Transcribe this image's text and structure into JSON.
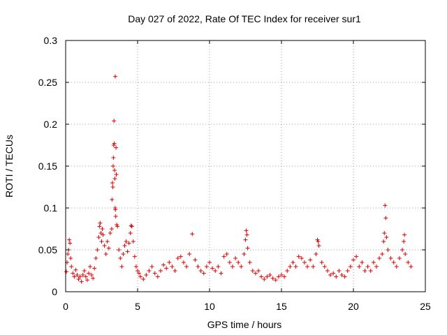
{
  "chart_data": {
    "type": "scatter",
    "title": "Day 027 of 2022, Rate Of TEC Index for receiver sur1",
    "xlabel": "GPS time / hours",
    "ylabel": "ROTI / TECUs",
    "xlim": [
      0,
      25
    ],
    "ylim": [
      0,
      0.3
    ],
    "x_ticks": [
      0,
      5,
      10,
      15,
      20,
      25
    ],
    "x_tick_labels": [
      "0",
      "5",
      "10",
      "15",
      "20",
      "25"
    ],
    "y_ticks": [
      0,
      0.05,
      0.1,
      0.15,
      0.2,
      0.25,
      0.3
    ],
    "y_tick_labels": [
      "0",
      "0.05",
      "0.1",
      "0.15",
      "0.2",
      "0.25",
      "0.3"
    ],
    "grid": true,
    "marker": "plus",
    "series_color": "#e00000",
    "series": [
      {
        "name": "ROTI",
        "points": [
          [
            0.05,
            0.024
          ],
          [
            0.1,
            0.035
          ],
          [
            0.15,
            0.045
          ],
          [
            0.2,
            0.05
          ],
          [
            0.25,
            0.062
          ],
          [
            0.3,
            0.058
          ],
          [
            0.35,
            0.04
          ],
          [
            0.4,
            0.03
          ],
          [
            0.5,
            0.022
          ],
          [
            0.6,
            0.018
          ],
          [
            0.7,
            0.026
          ],
          [
            0.8,
            0.02
          ],
          [
            0.9,
            0.015
          ],
          [
            1.0,
            0.018
          ],
          [
            1.1,
            0.012
          ],
          [
            1.2,
            0.02
          ],
          [
            1.3,
            0.025
          ],
          [
            1.4,
            0.018
          ],
          [
            1.5,
            0.014
          ],
          [
            1.6,
            0.022
          ],
          [
            1.7,
            0.03
          ],
          [
            1.8,
            0.02
          ],
          [
            1.9,
            0.016
          ],
          [
            2.0,
            0.028
          ],
          [
            2.1,
            0.04
          ],
          [
            2.2,
            0.05
          ],
          [
            2.3,
            0.065
          ],
          [
            2.35,
            0.078
          ],
          [
            2.4,
            0.082
          ],
          [
            2.45,
            0.07
          ],
          [
            2.5,
            0.06
          ],
          [
            2.55,
            0.075
          ],
          [
            2.6,
            0.068
          ],
          [
            2.7,
            0.055
          ],
          [
            2.8,
            0.045
          ],
          [
            2.9,
            0.06
          ],
          [
            3.0,
            0.052
          ],
          [
            3.1,
            0.07
          ],
          [
            3.2,
            0.075
          ],
          [
            3.22,
            0.11
          ],
          [
            3.25,
            0.13
          ],
          [
            3.28,
            0.125
          ],
          [
            3.3,
            0.15
          ],
          [
            3.32,
            0.16
          ],
          [
            3.34,
            0.175
          ],
          [
            3.36,
            0.204
          ],
          [
            3.38,
            0.177
          ],
          [
            3.4,
            0.145
          ],
          [
            3.42,
            0.135
          ],
          [
            3.44,
            0.1
          ],
          [
            3.45,
            0.257
          ],
          [
            3.46,
            0.098
          ],
          [
            3.48,
            0.09
          ],
          [
            3.5,
            0.172
          ],
          [
            3.52,
            0.14
          ],
          [
            3.55,
            0.08
          ],
          [
            3.6,
            0.078
          ],
          [
            3.7,
            0.05
          ],
          [
            3.8,
            0.04
          ],
          [
            3.9,
            0.03
          ],
          [
            4.0,
            0.045
          ],
          [
            4.1,
            0.055
          ],
          [
            4.2,
            0.06
          ],
          [
            4.3,
            0.048
          ],
          [
            4.4,
            0.058
          ],
          [
            4.5,
            0.07
          ],
          [
            4.55,
            0.079
          ],
          [
            4.6,
            0.078
          ],
          [
            4.7,
            0.06
          ],
          [
            4.8,
            0.042
          ],
          [
            4.9,
            0.03
          ],
          [
            5.0,
            0.025
          ],
          [
            5.1,
            0.022
          ],
          [
            5.2,
            0.018
          ],
          [
            5.4,
            0.015
          ],
          [
            5.6,
            0.02
          ],
          [
            5.8,
            0.025
          ],
          [
            6.0,
            0.03
          ],
          [
            6.2,
            0.022
          ],
          [
            6.4,
            0.018
          ],
          [
            6.6,
            0.025
          ],
          [
            6.8,
            0.032
          ],
          [
            7.0,
            0.028
          ],
          [
            7.2,
            0.035
          ],
          [
            7.4,
            0.03
          ],
          [
            7.6,
            0.025
          ],
          [
            7.8,
            0.04
          ],
          [
            8.0,
            0.042
          ],
          [
            8.2,
            0.035
          ],
          [
            8.4,
            0.03
          ],
          [
            8.6,
            0.045
          ],
          [
            8.8,
            0.069
          ],
          [
            9.0,
            0.038
          ],
          [
            9.2,
            0.03
          ],
          [
            9.4,
            0.025
          ],
          [
            9.6,
            0.022
          ],
          [
            9.8,
            0.03
          ],
          [
            10.0,
            0.035
          ],
          [
            10.2,
            0.028
          ],
          [
            10.4,
            0.025
          ],
          [
            10.6,
            0.03
          ],
          [
            10.8,
            0.022
          ],
          [
            11.0,
            0.042
          ],
          [
            11.2,
            0.045
          ],
          [
            11.4,
            0.035
          ],
          [
            11.6,
            0.03
          ],
          [
            11.8,
            0.04
          ],
          [
            12.0,
            0.035
          ],
          [
            12.2,
            0.03
          ],
          [
            12.4,
            0.045
          ],
          [
            12.5,
            0.062
          ],
          [
            12.55,
            0.073
          ],
          [
            12.6,
            0.068
          ],
          [
            12.65,
            0.052
          ],
          [
            12.8,
            0.035
          ],
          [
            13.0,
            0.025
          ],
          [
            13.2,
            0.022
          ],
          [
            13.4,
            0.025
          ],
          [
            13.6,
            0.018
          ],
          [
            13.8,
            0.015
          ],
          [
            14.0,
            0.018
          ],
          [
            14.2,
            0.02
          ],
          [
            14.4,
            0.016
          ],
          [
            14.6,
            0.014
          ],
          [
            14.8,
            0.018
          ],
          [
            15.0,
            0.02
          ],
          [
            15.2,
            0.018
          ],
          [
            15.4,
            0.025
          ],
          [
            15.6,
            0.03
          ],
          [
            15.8,
            0.035
          ],
          [
            16.0,
            0.03
          ],
          [
            16.2,
            0.042
          ],
          [
            16.4,
            0.04
          ],
          [
            16.6,
            0.035
          ],
          [
            16.8,
            0.03
          ],
          [
            17.0,
            0.038
          ],
          [
            17.2,
            0.03
          ],
          [
            17.4,
            0.045
          ],
          [
            17.5,
            0.062
          ],
          [
            17.55,
            0.06
          ],
          [
            17.6,
            0.055
          ],
          [
            17.8,
            0.035
          ],
          [
            18.0,
            0.03
          ],
          [
            18.2,
            0.025
          ],
          [
            18.4,
            0.02
          ],
          [
            18.6,
            0.022
          ],
          [
            18.8,
            0.018
          ],
          [
            19.0,
            0.025
          ],
          [
            19.2,
            0.02
          ],
          [
            19.4,
            0.018
          ],
          [
            19.6,
            0.025
          ],
          [
            19.8,
            0.03
          ],
          [
            20.0,
            0.038
          ],
          [
            20.2,
            0.042
          ],
          [
            20.4,
            0.03
          ],
          [
            20.6,
            0.035
          ],
          [
            20.8,
            0.025
          ],
          [
            21.0,
            0.03
          ],
          [
            21.2,
            0.025
          ],
          [
            21.4,
            0.035
          ],
          [
            21.6,
            0.03
          ],
          [
            21.8,
            0.04
          ],
          [
            22.0,
            0.045
          ],
          [
            22.1,
            0.06
          ],
          [
            22.15,
            0.07
          ],
          [
            22.2,
            0.103
          ],
          [
            22.25,
            0.088
          ],
          [
            22.3,
            0.065
          ],
          [
            22.4,
            0.05
          ],
          [
            22.6,
            0.04
          ],
          [
            22.8,
            0.035
          ],
          [
            23.0,
            0.03
          ],
          [
            23.2,
            0.04
          ],
          [
            23.4,
            0.05
          ],
          [
            23.5,
            0.06
          ],
          [
            23.55,
            0.068
          ],
          [
            23.6,
            0.045
          ],
          [
            23.8,
            0.035
          ],
          [
            24.0,
            0.03
          ]
        ]
      }
    ]
  }
}
